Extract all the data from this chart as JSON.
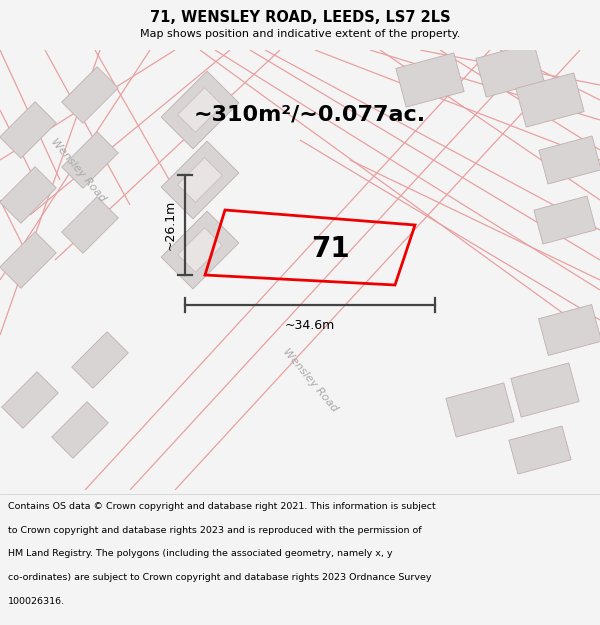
{
  "title_line1": "71, WENSLEY ROAD, LEEDS, LS7 2LS",
  "title_line2": "Map shows position and indicative extent of the property.",
  "area_text": "~310m²/~0.077ac.",
  "label_number": "71",
  "dim_width": "~34.6m",
  "dim_height": "~26.1m",
  "road_label_upper": "Wensley Road",
  "road_label_lower": "Wensley Road",
  "footer_lines": [
    "Contains OS data © Crown copyright and database right 2021. This information is subject",
    "to Crown copyright and database rights 2023 and is reproduced with the permission of",
    "HM Land Registry. The polygons (including the associated geometry, namely x, y",
    "co-ordinates) are subject to Crown copyright and database rights 2023 Ordnance Survey",
    "100026316."
  ],
  "bg_color": "#f5f4f4",
  "map_bg": "#f0eeee",
  "block_color": "#d8d4d4",
  "block_border": "#c0b0b0",
  "road_line_color": "#e8a0a0",
  "property_color": "#ee0000",
  "dim_line_color": "#444444",
  "figsize": [
    6.0,
    6.25
  ],
  "dpi": 100
}
